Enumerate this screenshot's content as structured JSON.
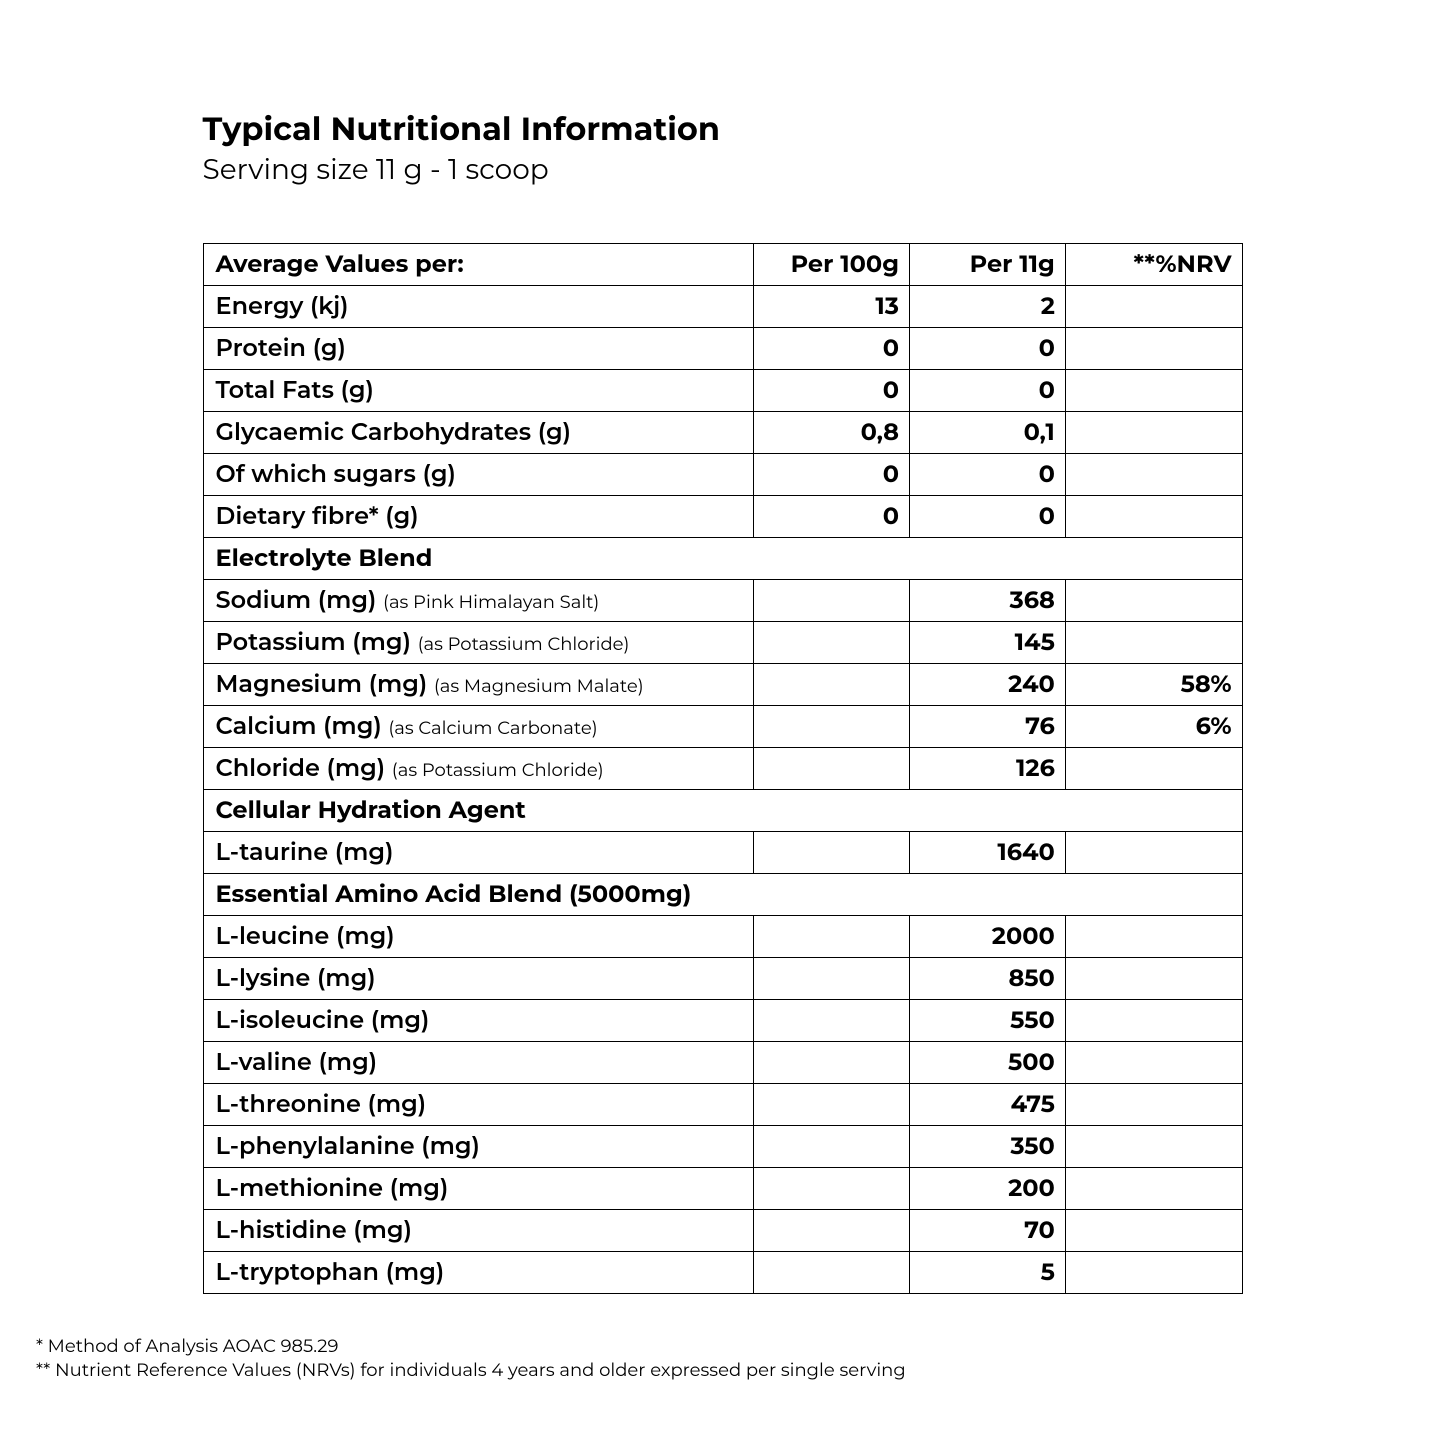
{
  "header": {
    "title": "Typical Nutritional Information",
    "serving": "Serving size 11 g - 1 scoop"
  },
  "columns": {
    "label": "Average Values per:",
    "per100g": "Per 100g",
    "per11g": "Per 11g",
    "nrv": "**%NRV"
  },
  "rows": [
    {
      "type": "data",
      "label": "Energy (kj)",
      "per100g": "13",
      "per11g": "2",
      "nrv": ""
    },
    {
      "type": "data",
      "label": "Protein (g)",
      "per100g": "0",
      "per11g": "0",
      "nrv": ""
    },
    {
      "type": "data",
      "label": "Total Fats (g)",
      "per100g": "0",
      "per11g": "0",
      "nrv": ""
    },
    {
      "type": "data",
      "label": "Glycaemic Carbohydrates (g)",
      "per100g": "0,8",
      "per11g": "0,1",
      "nrv": ""
    },
    {
      "type": "data",
      "label": "Of which sugars (g)",
      "per100g": "0",
      "per11g": "0",
      "nrv": ""
    },
    {
      "type": "data",
      "label": "Dietary fibre* (g)",
      "per100g": "0",
      "per11g": "0",
      "nrv": ""
    },
    {
      "type": "section",
      "label": "Electrolyte Blend"
    },
    {
      "type": "data",
      "label": "Sodium (mg)",
      "sub": "(as Pink Himalayan Salt)",
      "per100g": "",
      "per11g": "368",
      "nrv": ""
    },
    {
      "type": "data",
      "label": "Potassium (mg)",
      "sub": "(as Potassium Chloride)",
      "per100g": "",
      "per11g": "145",
      "nrv": ""
    },
    {
      "type": "data",
      "label": "Magnesium (mg)",
      "sub": "(as Magnesium Malate)",
      "per100g": "",
      "per11g": "240",
      "nrv": "58%"
    },
    {
      "type": "data",
      "label": "Calcium (mg)",
      "sub": "(as Calcium Carbonate)",
      "per100g": "",
      "per11g": "76",
      "nrv": "6%"
    },
    {
      "type": "data",
      "label": "Chloride (mg)",
      "sub": "(as Potassium Chloride)",
      "per100g": "",
      "per11g": "126",
      "nrv": ""
    },
    {
      "type": "section",
      "label": "Cellular Hydration Agent"
    },
    {
      "type": "data",
      "label": "L-taurine (mg)",
      "per100g": "",
      "per11g": "1640",
      "nrv": ""
    },
    {
      "type": "section",
      "label": "Essential Amino Acid Blend (5000mg)"
    },
    {
      "type": "data",
      "label": "L-leucine (mg)",
      "per100g": "",
      "per11g": "2000",
      "nrv": ""
    },
    {
      "type": "data",
      "label": "L-lysine (mg)",
      "per100g": "",
      "per11g": "850",
      "nrv": ""
    },
    {
      "type": "data",
      "label": "L-isoleucine (mg)",
      "per100g": "",
      "per11g": "550",
      "nrv": ""
    },
    {
      "type": "data",
      "label": "L-valine (mg)",
      "per100g": "",
      "per11g": "500",
      "nrv": ""
    },
    {
      "type": "data",
      "label": "L-threonine (mg)",
      "per100g": "",
      "per11g": "475",
      "nrv": ""
    },
    {
      "type": "data",
      "label": "L-phenylalanine (mg)",
      "per100g": "",
      "per11g": "350",
      "nrv": ""
    },
    {
      "type": "data",
      "label": "L-methionine (mg)",
      "per100g": "",
      "per11g": "200",
      "nrv": ""
    },
    {
      "type": "data",
      "label": "L-histidine (mg)",
      "per100g": "",
      "per11g": "70",
      "nrv": ""
    },
    {
      "type": "data",
      "label": "L-tryptophan (mg)",
      "per100g": "",
      "per11g": "5",
      "nrv": ""
    }
  ],
  "footnotes": [
    "* Method of Analysis AOAC 985.29",
    "** Nutrient Reference Values (NRVs) for individuals 4 years and older expressed per single serving"
  ]
}
